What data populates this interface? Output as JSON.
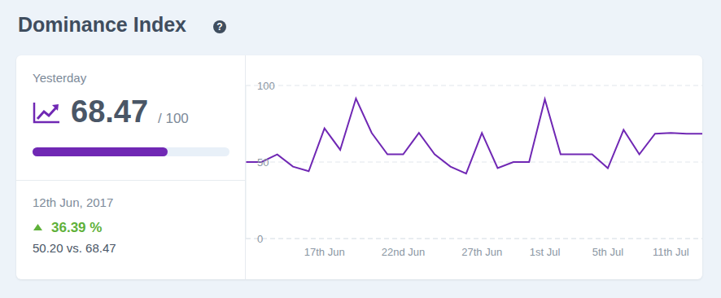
{
  "title": "Dominance Index",
  "help_icon": "?",
  "summary": {
    "period": "Yesterday",
    "value_label": "68.47",
    "max_label": "/ 100",
    "progress": {
      "value": 68.47,
      "max": 100
    },
    "date": "12th Jun, 2017",
    "change_label": "36.39 %",
    "comparison": "50.20 vs. 68.47"
  },
  "chart_data": {
    "type": "line",
    "categories": [
      null,
      null,
      null,
      null,
      null,
      "17th Jun",
      null,
      null,
      null,
      null,
      "22nd Jun",
      null,
      null,
      null,
      null,
      "27th Jun",
      null,
      null,
      null,
      "1st Jul",
      null,
      null,
      null,
      "5th Jul",
      null,
      null,
      null,
      "11th Jul",
      null,
      null
    ],
    "values": [
      50,
      50,
      55,
      47,
      44,
      72,
      58,
      91.5,
      69,
      55,
      55,
      69,
      55,
      47,
      42.5,
      69,
      46,
      50,
      50,
      91,
      55,
      55,
      55,
      46,
      71,
      55,
      68.5,
      69,
      68.5,
      68.47
    ],
    "color": "#7028b4",
    "ylim": [
      0,
      100
    ],
    "yticks": [
      0,
      50,
      100
    ],
    "grid": true
  }
}
